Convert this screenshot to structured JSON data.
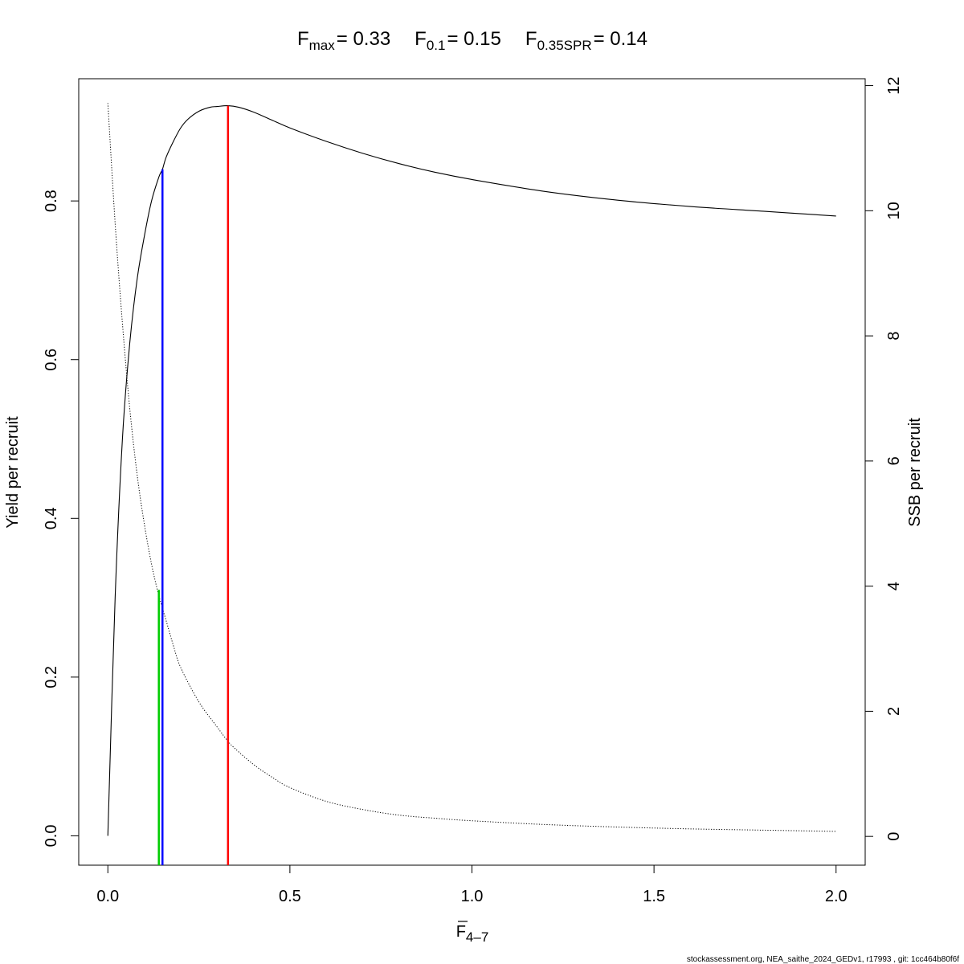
{
  "chart_data": {
    "type": "line",
    "title": {
      "parts": [
        {
          "main": "F",
          "sub": "max",
          "value": "= 0.33"
        },
        {
          "main": "F",
          "sub": "0.1",
          "value": "= 0.15"
        },
        {
          "main": "F",
          "sub": "0.35SPR",
          "value": "= 0.14"
        }
      ]
    },
    "xlabel": {
      "main": "F",
      "sub": "4–7"
    },
    "ylabel": "Yield per recruit",
    "y2label": "SSB per recruit",
    "xlim": [
      -0.08,
      2.08
    ],
    "ylim": [
      -0.037,
      0.954
    ],
    "y2lim": [
      -0.46,
      12.11
    ],
    "x_ticks": [
      "0.0",
      "0.5",
      "1.0",
      "1.5",
      "2.0"
    ],
    "y_ticks": [
      "0.0",
      "0.2",
      "0.4",
      "0.6",
      "0.8"
    ],
    "y2_ticks": [
      "0",
      "2",
      "4",
      "6",
      "8",
      "10",
      "12"
    ],
    "grid": false,
    "series": [
      {
        "axis": "left",
        "style": "solid",
        "color": "#000000",
        "x": [
          0.0,
          0.02,
          0.04,
          0.06,
          0.08,
          0.1,
          0.12,
          0.14,
          0.15,
          0.16,
          0.18,
          0.2,
          0.22,
          0.25,
          0.28,
          0.3,
          0.33,
          0.36,
          0.4,
          0.45,
          0.5,
          0.6,
          0.7,
          0.8,
          0.9,
          1.0,
          1.2,
          1.4,
          1.6,
          1.8,
          2.0
        ],
        "values": [
          0.0,
          0.3,
          0.5,
          0.62,
          0.7,
          0.755,
          0.8,
          0.83,
          0.84,
          0.855,
          0.875,
          0.892,
          0.903,
          0.913,
          0.918,
          0.919,
          0.92,
          0.918,
          0.912,
          0.902,
          0.892,
          0.875,
          0.86,
          0.847,
          0.836,
          0.827,
          0.812,
          0.801,
          0.793,
          0.787,
          0.781
        ]
      },
      {
        "axis": "right",
        "style": "dotted",
        "color": "#000000",
        "x": [
          0.0,
          0.02,
          0.04,
          0.06,
          0.08,
          0.1,
          0.12,
          0.14,
          0.16,
          0.18,
          0.2,
          0.25,
          0.3,
          0.33,
          0.35,
          0.4,
          0.45,
          0.5,
          0.6,
          0.7,
          0.8,
          0.9,
          1.0,
          1.2,
          1.4,
          1.6,
          1.8,
          2.0
        ],
        "values": [
          11.72,
          9.8,
          8.2,
          6.85,
          5.8,
          5.0,
          4.35,
          3.85,
          3.45,
          3.05,
          2.7,
          2.15,
          1.75,
          1.52,
          1.4,
          1.15,
          0.95,
          0.78,
          0.56,
          0.43,
          0.34,
          0.29,
          0.25,
          0.19,
          0.15,
          0.12,
          0.1,
          0.08
        ]
      }
    ],
    "reference_lines": [
      {
        "name": "F_max",
        "color": "#ff0000",
        "x": 0.33,
        "y_top": 0.92
      },
      {
        "name": "F_0.1",
        "color": "#0000ff",
        "x": 0.15,
        "y_top": 0.84
      },
      {
        "name": "F_0.35SPR",
        "color": "#00cc00",
        "x": 0.14,
        "y_top": 0.31
      }
    ]
  },
  "footer": "stockassessment.org, NEA_saithe_2024_GEDv1, r17993 , git: 1cc464b80f6f"
}
